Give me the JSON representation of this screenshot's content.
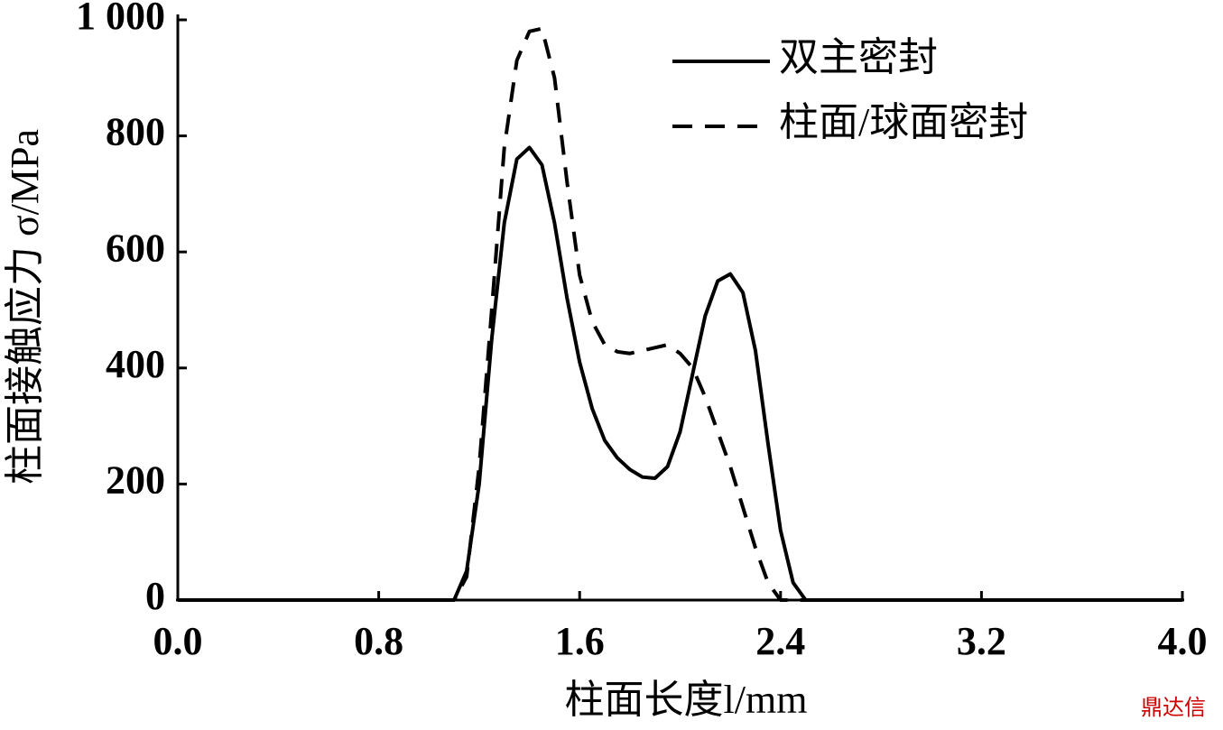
{
  "chart_data": {
    "type": "line",
    "x_label": "柱面长度l/mm",
    "y_label": "柱面接触应力 σ/MPa",
    "watermark": "鼎达信",
    "xlim": [
      0,
      4.0
    ],
    "ylim": [
      0,
      1000
    ],
    "xticks": [
      {
        "value": 0,
        "label": "0.0"
      },
      0.8,
      1.6,
      2.4,
      3.2,
      {
        "value": 4.0,
        "label": "4.0"
      }
    ],
    "yticks": [
      0,
      200,
      400,
      600,
      800,
      {
        "value": 1000,
        "label": "1 000"
      }
    ],
    "grid": false,
    "legend": "upper right",
    "x": [
      0,
      1.1,
      1.15,
      1.2,
      1.25,
      1.3,
      1.35,
      1.4,
      1.45,
      1.5,
      1.55,
      1.6,
      1.65,
      1.7,
      1.75,
      1.8,
      1.85,
      1.9,
      1.95,
      2.0,
      2.05,
      2.1,
      2.15,
      2.2,
      2.25,
      2.3,
      2.35,
      2.4,
      2.45,
      2.5,
      4.0
    ],
    "series": [
      {
        "name": "双主密封",
        "color": "#000000",
        "dashed": false,
        "values": [
          0,
          0,
          50,
          200,
          450,
          650,
          760,
          780,
          750,
          650,
          520,
          410,
          330,
          275,
          245,
          225,
          212,
          210,
          230,
          290,
          390,
          490,
          550,
          562,
          530,
          430,
          270,
          120,
          30,
          0,
          0
        ]
      },
      {
        "name": "柱面/球面密封",
        "color": "#000000",
        "dashed": true,
        "values": [
          0,
          0,
          40,
          230,
          500,
          780,
          930,
          980,
          985,
          900,
          720,
          560,
          480,
          440,
          428,
          425,
          430,
          435,
          440,
          425,
          400,
          350,
          290,
          230,
          160,
          90,
          30,
          0,
          0,
          0,
          0
        ]
      }
    ]
  }
}
